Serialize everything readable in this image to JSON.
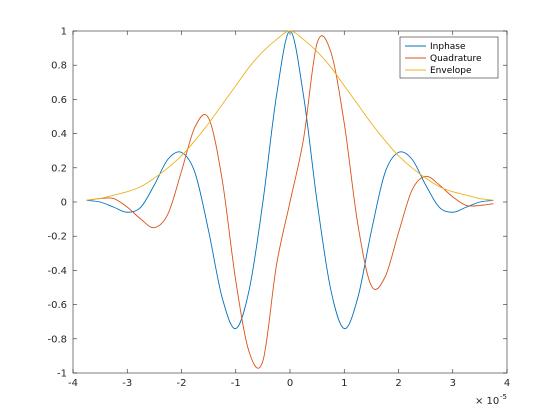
{
  "chart_data": {
    "type": "line",
    "title": "",
    "xlabel": "",
    "ylabel": "",
    "x_exponent_label": "× 10",
    "x_exponent_power": "-5",
    "xlim": [
      -4,
      4
    ],
    "ylim": [
      -1,
      1
    ],
    "x_scale_factor": 1e-05,
    "x_ticks": [
      -4,
      -3,
      -2,
      -1,
      0,
      1,
      2,
      3,
      4
    ],
    "x_tick_labels": [
      "-4",
      "-3",
      "-2",
      "-1",
      "0",
      "1",
      "2",
      "3",
      "4"
    ],
    "y_ticks": [
      -1,
      -0.8,
      -0.6,
      -0.4,
      -0.2,
      0,
      0.2,
      0.4,
      0.6,
      0.8,
      1
    ],
    "y_tick_labels": [
      "-1",
      "-0.8",
      "-0.6",
      "-0.4",
      "-0.2",
      "0",
      "0.2",
      "0.4",
      "0.6",
      "0.8",
      "1"
    ],
    "grid": false,
    "box": true,
    "legend_position": "top-right",
    "x": [
      -3.75,
      -3.5,
      -3.25,
      -3.0,
      -2.75,
      -2.5,
      -2.25,
      -2.0,
      -1.75,
      -1.5,
      -1.25,
      -1.0,
      -0.75,
      -0.5,
      -0.25,
      0.0,
      0.25,
      0.5,
      0.75,
      1.0,
      1.25,
      1.5,
      1.75,
      2.0,
      2.25,
      2.5,
      2.75,
      3.0,
      3.25,
      3.5,
      3.75
    ],
    "series": [
      {
        "name": "Inphase",
        "color": "#0072BD",
        "values": [
          0.01,
          0.0,
          -0.03,
          -0.06,
          -0.03,
          0.1,
          0.25,
          0.29,
          0.17,
          -0.17,
          -0.56,
          -0.74,
          -0.51,
          0.0,
          0.62,
          1.0,
          0.62,
          0.0,
          -0.51,
          -0.74,
          -0.56,
          -0.17,
          0.17,
          0.29,
          0.25,
          0.1,
          -0.03,
          -0.06,
          -0.03,
          0.0,
          0.01
        ]
      },
      {
        "name": "Quadrature",
        "color": "#D95319",
        "values": [
          0.01,
          0.02,
          0.02,
          -0.03,
          -0.1,
          -0.15,
          -0.07,
          0.18,
          0.44,
          0.49,
          0.13,
          -0.46,
          -0.88,
          -0.93,
          -0.37,
          0.0,
          0.37,
          0.93,
          0.88,
          0.46,
          -0.13,
          -0.49,
          -0.44,
          -0.18,
          0.07,
          0.15,
          0.1,
          0.03,
          -0.02,
          -0.02,
          -0.01
        ]
      },
      {
        "name": "Envelope",
        "color": "#EDB120",
        "values": [
          0.01,
          0.02,
          0.04,
          0.06,
          0.09,
          0.14,
          0.2,
          0.27,
          0.36,
          0.46,
          0.57,
          0.68,
          0.79,
          0.88,
          0.95,
          1.0,
          0.95,
          0.88,
          0.79,
          0.68,
          0.57,
          0.46,
          0.36,
          0.27,
          0.2,
          0.14,
          0.09,
          0.06,
          0.04,
          0.02,
          0.01
        ]
      }
    ]
  }
}
